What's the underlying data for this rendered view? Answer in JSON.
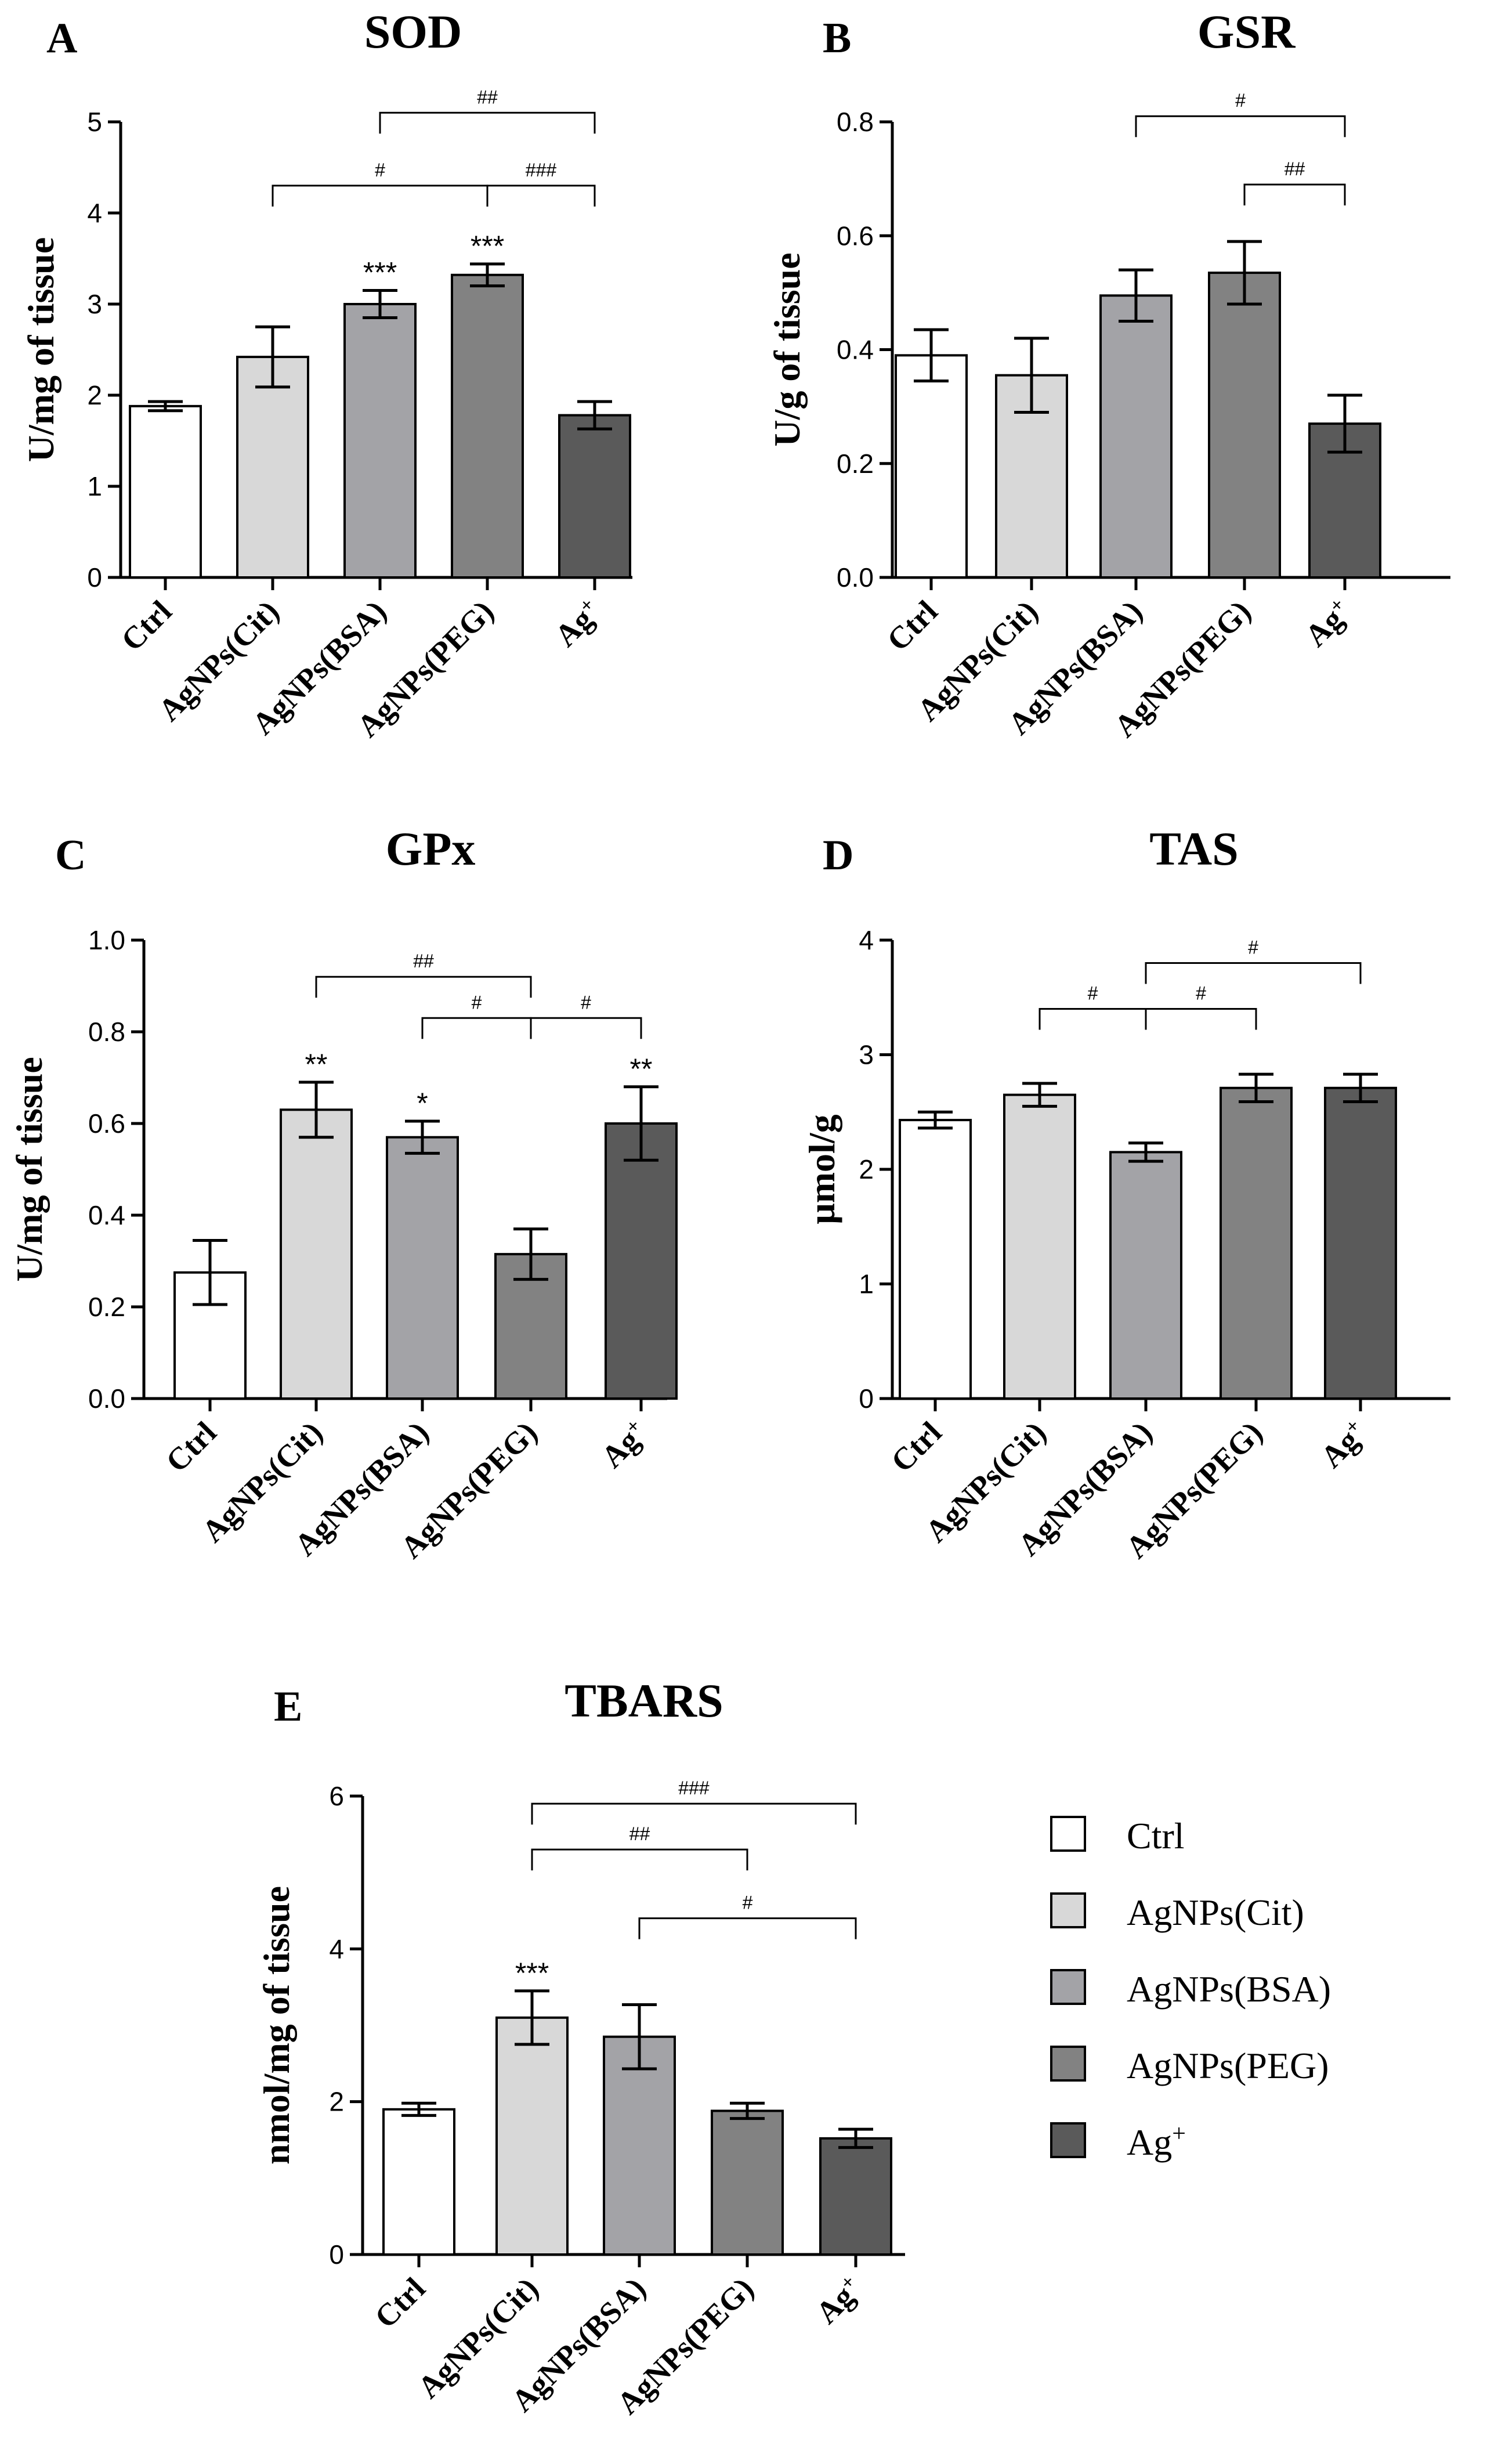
{
  "colors": [
    "#ffffff",
    "#d8d8d8",
    "#a3a3a7",
    "#828282",
    "#5a5a5a"
  ],
  "chart_data": [
    {
      "panel": "A",
      "type": "bar",
      "title": "SOD",
      "ylabel": "U/mg of tissue",
      "xlabel": "",
      "categories": [
        "Ctrl",
        "AgNPs(Cit)",
        "AgNPs(BSA)",
        "AgNPs(PEG)",
        "Ag+"
      ],
      "values": [
        1.88,
        2.42,
        3.0,
        3.32,
        1.78
      ],
      "errors": [
        0.05,
        0.33,
        0.15,
        0.12,
        0.15
      ],
      "ylim": [
        0,
        5
      ],
      "yticks": [
        "0",
        "1",
        "2",
        "3",
        "4",
        "5"
      ],
      "significance": [
        "",
        "",
        "***",
        "***",
        ""
      ],
      "brackets": [
        {
          "from": 1,
          "to": 3,
          "y": 4.3,
          "label": "#"
        },
        {
          "from": 2,
          "to": 4,
          "y": 5.1,
          "label": "##"
        },
        {
          "from": 3,
          "to": 4,
          "y": 4.3,
          "label": "###"
        }
      ]
    },
    {
      "panel": "B",
      "type": "bar",
      "title": "GSR",
      "ylabel": "U/g of tissue",
      "xlabel": "",
      "categories": [
        "Ctrl",
        "AgNPs(Cit)",
        "AgNPs(BSA)",
        "AgNPs(PEG)",
        "Ag+"
      ],
      "values": [
        0.39,
        0.355,
        0.495,
        0.535,
        0.27
      ],
      "errors": [
        0.045,
        0.065,
        0.045,
        0.055,
        0.05
      ],
      "ylim": [
        0,
        0.8
      ],
      "yticks": [
        "0.0",
        "0.2",
        "0.4",
        "0.6",
        "0.8"
      ],
      "significance": [
        "",
        "",
        "",
        "",
        ""
      ],
      "brackets": [
        {
          "from": 2,
          "to": 4,
          "y": 0.81,
          "label": "#"
        },
        {
          "from": 3,
          "to": 4,
          "y": 0.69,
          "label": "##"
        }
      ]
    },
    {
      "panel": "C",
      "type": "bar",
      "title": "GPx",
      "ylabel": "U/mg of tissue",
      "xlabel": "",
      "categories": [
        "Ctrl",
        "AgNPs(Cit)",
        "AgNPs(BSA)",
        "AgNPs(PEG)",
        "Ag+"
      ],
      "values": [
        0.275,
        0.63,
        0.57,
        0.315,
        0.6
      ],
      "errors": [
        0.07,
        0.06,
        0.035,
        0.055,
        0.08
      ],
      "ylim": [
        0,
        1.0
      ],
      "yticks": [
        "0.0",
        "0.2",
        "0.4",
        "0.6",
        "0.8",
        "1.0"
      ],
      "significance": [
        "",
        "**",
        "*",
        "",
        "**"
      ],
      "brackets": [
        {
          "from": 1,
          "to": 3,
          "y": 0.92,
          "label": "##"
        },
        {
          "from": 2,
          "to": 3,
          "y": 0.83,
          "label": "#"
        },
        {
          "from": 3,
          "to": 4,
          "y": 0.83,
          "label": "#"
        }
      ]
    },
    {
      "panel": "D",
      "type": "bar",
      "title": "TAS",
      "ylabel": "μmol/g",
      "xlabel": "",
      "categories": [
        "Ctrl",
        "AgNPs(Cit)",
        "AgNPs(BSA)",
        "AgNPs(PEG)",
        "Ag+"
      ],
      "values": [
        2.43,
        2.65,
        2.15,
        2.71,
        2.71
      ],
      "errors": [
        0.07,
        0.1,
        0.08,
        0.12,
        0.12
      ],
      "ylim": [
        0,
        4
      ],
      "yticks": [
        "0",
        "1",
        "2",
        "3",
        "4"
      ],
      "significance": [
        "",
        "",
        "",
        "",
        ""
      ],
      "brackets": [
        {
          "from": 1,
          "to": 2,
          "y": 3.4,
          "label": "#"
        },
        {
          "from": 2,
          "to": 3,
          "y": 3.4,
          "label": "#"
        },
        {
          "from": 2,
          "to": 4,
          "y": 3.8,
          "label": "#"
        }
      ]
    },
    {
      "panel": "E",
      "type": "bar",
      "title": "TBARS",
      "ylabel": "nmol/mg of tissue",
      "xlabel": "",
      "categories": [
        "Ctrl",
        "AgNPs(Cit)",
        "AgNPs(BSA)",
        "AgNPs(PEG)",
        "Ag+"
      ],
      "values": [
        1.9,
        3.1,
        2.85,
        1.88,
        1.52
      ],
      "errors": [
        0.08,
        0.35,
        0.42,
        0.1,
        0.12
      ],
      "ylim": [
        0,
        6
      ],
      "yticks": [
        "0",
        "2",
        "4",
        "6"
      ],
      "significance": [
        "",
        "***",
        "",
        "",
        ""
      ],
      "brackets": [
        {
          "from": 1,
          "to": 4,
          "y": 5.9,
          "label": "###"
        },
        {
          "from": 1,
          "to": 3,
          "y": 5.3,
          "label": "##"
        },
        {
          "from": 2,
          "to": 4,
          "y": 4.4,
          "label": "#"
        }
      ]
    }
  ],
  "legend": {
    "items": [
      {
        "label": "Ctrl"
      },
      {
        "label": "AgNPs(Cit)"
      },
      {
        "label": "AgNPs(BSA)"
      },
      {
        "label": "AgNPs(PEG)"
      },
      {
        "label": "Ag+"
      }
    ]
  }
}
